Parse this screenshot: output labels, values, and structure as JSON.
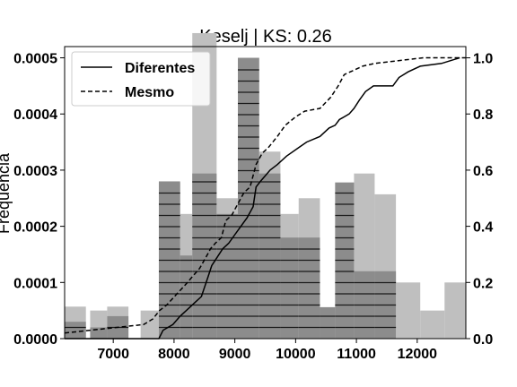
{
  "chart_data": {
    "type": "histogram_with_cdf",
    "title": "Keselj | KS: 0.26",
    "ylabel": "Frequência",
    "xlim": [
      6200,
      12800
    ],
    "ylim_left": [
      0,
      0.00052
    ],
    "ylim_right": [
      0,
      1.04
    ],
    "x_ticks": [
      "7000",
      "8000",
      "9000",
      "10000",
      "11000",
      "12000"
    ],
    "y_ticks_left": [
      "0.0000",
      "0.0001",
      "0.0002",
      "0.0003",
      "0.0004",
      "0.0005"
    ],
    "y_ticks_right": [
      "0.0",
      "0.2",
      "0.4",
      "0.6",
      "0.8",
      "1.0"
    ],
    "legend": {
      "placement": "top-left",
      "entries": [
        {
          "label": "Diferentes",
          "style": "solid"
        },
        {
          "label": "Mesmo",
          "style": "dashed"
        }
      ]
    },
    "histogram_solid": {
      "color": "#bfbfbf",
      "bins": [
        [
          6200,
          6550,
          5.7e-05
        ],
        [
          6620,
          6900,
          5e-05
        ],
        [
          6900,
          7250,
          5.7e-05
        ],
        [
          7450,
          7750,
          5e-05
        ],
        [
          7750,
          8100,
          0.000278
        ],
        [
          8100,
          8300,
          0.000222
        ],
        [
          8300,
          8700,
          0.000544
        ],
        [
          8700,
          9050,
          0.00025
        ],
        [
          9050,
          9400,
          0.0005
        ],
        [
          9400,
          9750,
          0.000333
        ],
        [
          9750,
          10050,
          0.000222
        ],
        [
          10050,
          10400,
          0.00025
        ],
        [
          10400,
          10650,
          5e-05
        ],
        [
          10650,
          10960,
          0.000278
        ],
        [
          10960,
          11300,
          0.000294
        ],
        [
          11300,
          11650,
          0.000257
        ],
        [
          11650,
          12050,
          0.0001
        ],
        [
          12050,
          12450,
          5e-05
        ],
        [
          12450,
          12800,
          0.0001
        ]
      ]
    },
    "histogram_hatched": {
      "color": "#8c8c8c",
      "bins": [
        [
          6200,
          6550,
          3e-05
        ],
        [
          6620,
          6900,
          2e-05
        ],
        [
          6900,
          7250,
          4e-05
        ],
        [
          7750,
          8100,
          0.00028
        ],
        [
          8100,
          8300,
          0.000148
        ],
        [
          8300,
          8700,
          0.000294
        ],
        [
          8700,
          9050,
          0.000222
        ],
        [
          9050,
          9400,
          0.0005
        ],
        [
          9400,
          9750,
          0.000294
        ],
        [
          9750,
          10050,
          0.00018
        ],
        [
          10050,
          10400,
          0.00018
        ],
        [
          10400,
          10650,
          5.6e-05
        ],
        [
          10650,
          10960,
          0.000278
        ],
        [
          10960,
          11300,
          0.00012
        ],
        [
          11300,
          11650,
          0.00012
        ]
      ]
    },
    "cdf_series": [
      {
        "name": "Diferentes",
        "style": "solid",
        "points": [
          [
            6200,
            0
          ],
          [
            7750,
            0
          ],
          [
            7820,
            0.03
          ],
          [
            7980,
            0.05
          ],
          [
            8100,
            0.08
          ],
          [
            8200,
            0.1
          ],
          [
            8300,
            0.12
          ],
          [
            8450,
            0.15
          ],
          [
            8560,
            0.22
          ],
          [
            8620,
            0.26
          ],
          [
            8680,
            0.28
          ],
          [
            8800,
            0.32
          ],
          [
            8900,
            0.34
          ],
          [
            9000,
            0.37
          ],
          [
            9100,
            0.4
          ],
          [
            9200,
            0.43
          ],
          [
            9300,
            0.47
          ],
          [
            9350,
            0.54
          ],
          [
            9420,
            0.56
          ],
          [
            9500,
            0.58
          ],
          [
            9580,
            0.6
          ],
          [
            9700,
            0.62
          ],
          [
            9850,
            0.65
          ],
          [
            10050,
            0.68
          ],
          [
            10180,
            0.7
          ],
          [
            10400,
            0.72
          ],
          [
            10550,
            0.75
          ],
          [
            10650,
            0.76
          ],
          [
            10720,
            0.78
          ],
          [
            10880,
            0.8
          ],
          [
            10960,
            0.82
          ],
          [
            11050,
            0.85
          ],
          [
            11150,
            0.88
          ],
          [
            11280,
            0.9
          ],
          [
            11600,
            0.9
          ],
          [
            11700,
            0.93
          ],
          [
            11850,
            0.95
          ],
          [
            12050,
            0.97
          ],
          [
            12400,
            0.98
          ],
          [
            12700,
            1.0
          ]
        ]
      },
      {
        "name": "Mesmo",
        "style": "dashed",
        "points": [
          [
            6200,
            0.02
          ],
          [
            7500,
            0.05
          ],
          [
            7650,
            0.07
          ],
          [
            7760,
            0.1
          ],
          [
            7880,
            0.12
          ],
          [
            8050,
            0.16
          ],
          [
            8180,
            0.19
          ],
          [
            8300,
            0.22
          ],
          [
            8420,
            0.25
          ],
          [
            8550,
            0.3
          ],
          [
            8600,
            0.32
          ],
          [
            8680,
            0.34
          ],
          [
            8780,
            0.36
          ],
          [
            8850,
            0.42
          ],
          [
            8950,
            0.44
          ],
          [
            9050,
            0.48
          ],
          [
            9100,
            0.5
          ],
          [
            9150,
            0.52
          ],
          [
            9250,
            0.54
          ],
          [
            9350,
            0.62
          ],
          [
            9450,
            0.66
          ],
          [
            9550,
            0.68
          ],
          [
            9700,
            0.72
          ],
          [
            9830,
            0.76
          ],
          [
            10000,
            0.79
          ],
          [
            10150,
            0.81
          ],
          [
            10400,
            0.82
          ],
          [
            10580,
            0.86
          ],
          [
            10700,
            0.9
          ],
          [
            10800,
            0.94
          ],
          [
            11000,
            0.96
          ],
          [
            11100,
            0.97
          ],
          [
            11300,
            0.98
          ],
          [
            12100,
            1.0
          ],
          [
            12800,
            1.0
          ]
        ]
      }
    ]
  }
}
